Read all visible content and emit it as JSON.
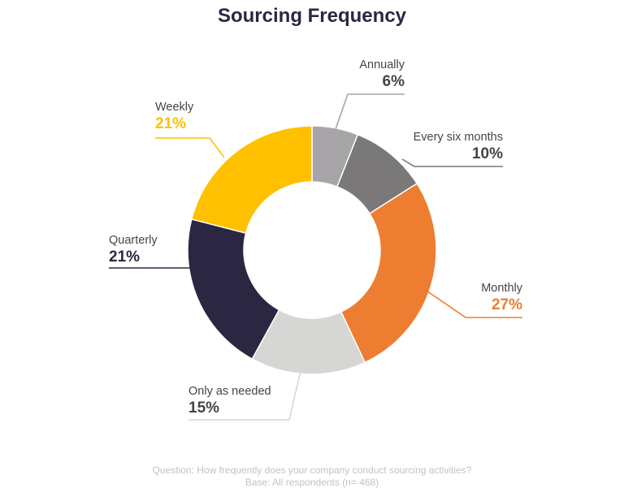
{
  "chart_data": {
    "type": "pie",
    "style": "donut",
    "title": "Sourcing Frequency",
    "slices": [
      {
        "label": "Annually",
        "value": 6,
        "value_label": "6%",
        "color": "#a7a4a8",
        "label_color": "#444444"
      },
      {
        "label": "Every six months",
        "value": 10,
        "value_label": "10%",
        "color": "#7a7878",
        "label_color": "#444444"
      },
      {
        "label": "Monthly",
        "value": 27,
        "value_label": "27%",
        "color": "#ed7d31",
        "label_color": "#ed7d31"
      },
      {
        "label": "Only as needed",
        "value": 15,
        "value_label": "15%",
        "color": "#d6d6d4",
        "label_color": "#444444"
      },
      {
        "label": "Quarterly",
        "value": 21,
        "value_label": "21%",
        "color": "#2b2742",
        "label_color": "#2b2742"
      },
      {
        "label": "Weekly",
        "value": 21,
        "value_label": "21%",
        "color": "#ffc000",
        "label_color": "#ffc000"
      }
    ],
    "footnote": [
      "Question: How frequently does your company conduct sourcing activities?",
      "Base: All respondents (n= 468)"
    ]
  }
}
